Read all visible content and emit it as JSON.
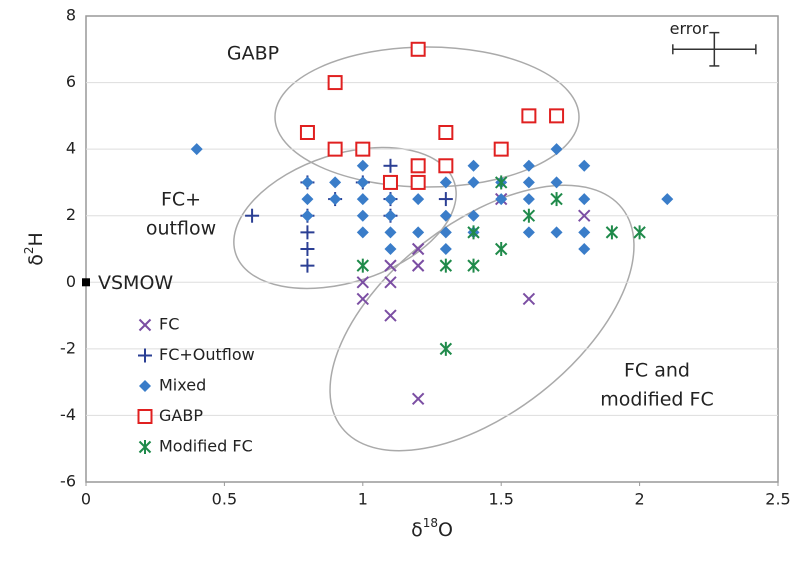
{
  "chart_data": {
    "type": "scatter",
    "xlabel": [
      "δ",
      "18",
      "O"
    ],
    "ylabel": [
      "δ",
      "2",
      "H"
    ],
    "xlim": [
      0,
      2.5
    ],
    "xticks": [
      0,
      0.5,
      1,
      1.5,
      2,
      2.5
    ],
    "ylim": [
      -6,
      8
    ],
    "yticks": [
      -6,
      -4,
      -2,
      0,
      2,
      4,
      6,
      8
    ],
    "grid": true,
    "legend": "lower left",
    "series": [
      {
        "name": "FC",
        "marker": "x",
        "color": "#7b4ea3",
        "x": [
          1.0,
          1.0,
          1.1,
          1.1,
          1.1,
          1.2,
          1.2,
          1.2,
          1.5,
          1.6,
          1.8
        ],
        "values": [
          0,
          -0.5,
          0.5,
          0,
          -1,
          1,
          0.5,
          -3.5,
          2.5,
          -0.5,
          2
        ]
      },
      {
        "name": "FC+Outflow",
        "marker": "plus",
        "color": "#2b3f94",
        "x": [
          0.6,
          0.8,
          0.8,
          0.8,
          0.8,
          0.8,
          0.9,
          1.0,
          1.1,
          1.1,
          1.1,
          1.2,
          1.2,
          1.3
        ],
        "values": [
          2,
          3,
          2,
          1.5,
          1,
          0.5,
          2.5,
          3,
          3.5,
          2.5,
          2,
          3.5,
          3,
          2.5
        ]
      },
      {
        "name": "Mixed",
        "marker": "diamond",
        "color": "#3a7dc9",
        "x": [
          0.4,
          0.8,
          0.8,
          0.8,
          0.9,
          0.9,
          1.0,
          1.0,
          1.0,
          1.0,
          1.0,
          1.1,
          1.1,
          1.1,
          1.1,
          1.1,
          1.2,
          1.2,
          1.2,
          1.2,
          1.3,
          1.3,
          1.3,
          1.3,
          1.3,
          1.4,
          1.4,
          1.4,
          1.4,
          1.5,
          1.5,
          1.6,
          1.6,
          1.6,
          1.6,
          1.7,
          1.7,
          1.7,
          1.8,
          1.8,
          1.8,
          1.8,
          2.1
        ],
        "values": [
          4,
          3,
          2.5,
          2,
          3,
          2.5,
          3.5,
          3,
          2.5,
          2,
          1.5,
          3,
          2.5,
          2,
          1.5,
          1,
          3.5,
          3,
          2.5,
          1.5,
          3.5,
          3,
          2,
          1.5,
          1,
          3.5,
          3,
          2,
          1.5,
          3,
          2.5,
          3.5,
          3,
          2.5,
          1.5,
          4,
          3,
          1.5,
          3.5,
          2.5,
          1.5,
          1,
          2.5
        ]
      },
      {
        "name": "GABP",
        "marker": "square",
        "color": "#e02020",
        "x": [
          0.8,
          0.9,
          0.9,
          1.0,
          1.1,
          1.2,
          1.2,
          1.2,
          1.3,
          1.3,
          1.5,
          1.6,
          1.7
        ],
        "values": [
          4.5,
          6,
          4,
          4,
          3,
          7,
          3.5,
          3,
          4.5,
          3.5,
          4,
          5,
          5
        ]
      },
      {
        "name": "Modified FC",
        "marker": "asterisk",
        "color": "#1f8a4a",
        "x": [
          1.0,
          1.3,
          1.4,
          1.4,
          1.3,
          1.5,
          1.5,
          1.6,
          1.7,
          1.9,
          2.0
        ],
        "values": [
          0.5,
          0.5,
          0.5,
          1.5,
          -2,
          3,
          1,
          2,
          2.5,
          1.5,
          1.5
        ]
      }
    ],
    "reference_point": {
      "label": "VSMOW",
      "x": 0,
      "y": 0
    },
    "error_bar": {
      "label": "error",
      "x": 2.27,
      "y": 7,
      "xerr": 0.15,
      "yerr": 0.5
    },
    "annotations": [
      [
        "GABP"
      ],
      [
        "FC+",
        "outflow"
      ],
      [
        "FC and",
        "modified FC"
      ]
    ]
  }
}
